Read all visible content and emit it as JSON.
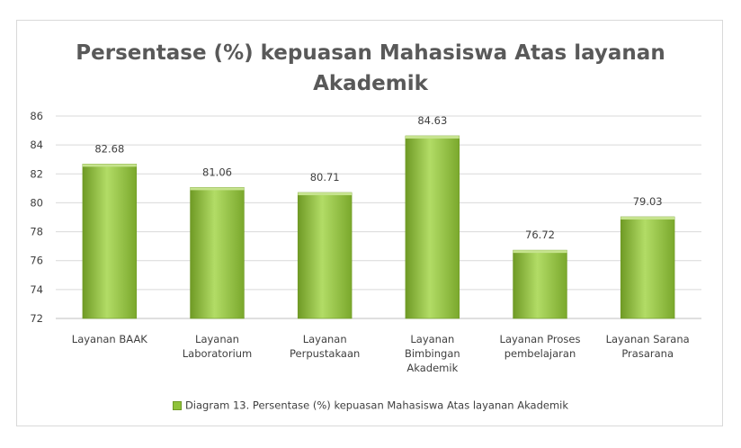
{
  "chart_data": {
    "type": "bar",
    "title": [
      "Persentase (%) kepuasan Mahasiswa Atas layanan",
      "Akademik"
    ],
    "categories": [
      [
        "Layanan BAAK"
      ],
      [
        "Layanan",
        "Laboratorium"
      ],
      [
        "Layanan",
        "Perpustakaan"
      ],
      [
        "Layanan",
        "Bimbingan",
        "Akademik"
      ],
      [
        "Layanan Proses",
        "pembelajaran"
      ],
      [
        "Layanan Sarana",
        "Prasarana"
      ]
    ],
    "series": [
      {
        "name": "Diagram 13. Persentase (%) kepuasan Mahasiswa Atas layanan Akademik",
        "values": [
          82.68,
          81.06,
          80.71,
          84.63,
          76.72,
          79.03
        ],
        "labels": [
          "82.68",
          "81.06",
          "80.71",
          "84.63",
          "76.72",
          "79.03"
        ]
      }
    ],
    "ylim": [
      72,
      86
    ],
    "yticks": [
      72,
      74,
      76,
      78,
      80,
      82,
      84,
      86
    ],
    "grid": true,
    "legend_position": "bottom",
    "colors": {
      "bar_light": "#a9d65a",
      "bar_dark": "#6f9a25",
      "bar_top": "#c6e38e",
      "grid": "#d9d9d9",
      "text": "#404040",
      "title": "#595959"
    }
  }
}
